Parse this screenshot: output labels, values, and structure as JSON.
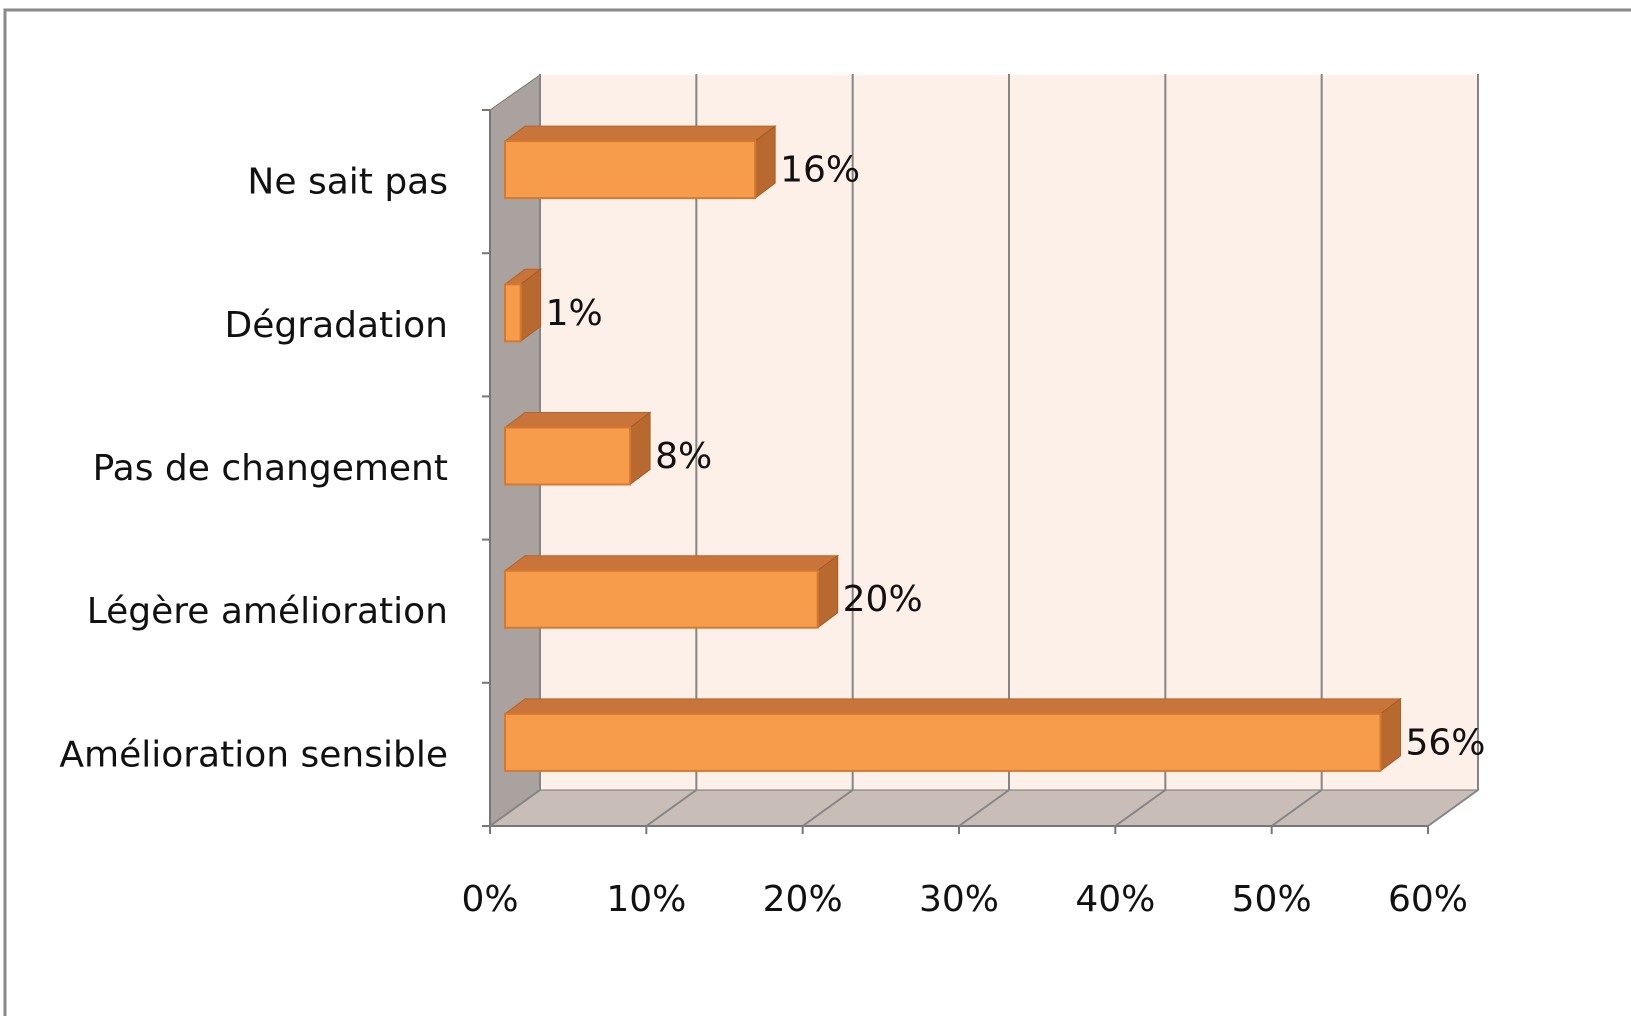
{
  "chart_data": {
    "type": "bar3d_horizontal",
    "categories": [
      "Amélioration sensible",
      "Légère amélioration",
      "Pas de changement",
      "Dégradation",
      "Ne sait pas"
    ],
    "values": [
      56,
      20,
      8,
      1,
      16
    ],
    "value_labels": [
      "56%",
      "20%",
      "8%",
      "1%",
      "16%"
    ],
    "color": "#f79c4a",
    "xlim": [
      0,
      60
    ],
    "xticks": [
      {
        "value": 0,
        "label": "0%"
      },
      {
        "value": 10,
        "label": "10%"
      },
      {
        "value": 20,
        "label": "20%"
      },
      {
        "value": 30,
        "label": "30%"
      },
      {
        "value": 40,
        "label": "40%"
      },
      {
        "value": 50,
        "label": "50%"
      },
      {
        "value": 60,
        "label": "60%"
      }
    ],
    "grid": true
  }
}
